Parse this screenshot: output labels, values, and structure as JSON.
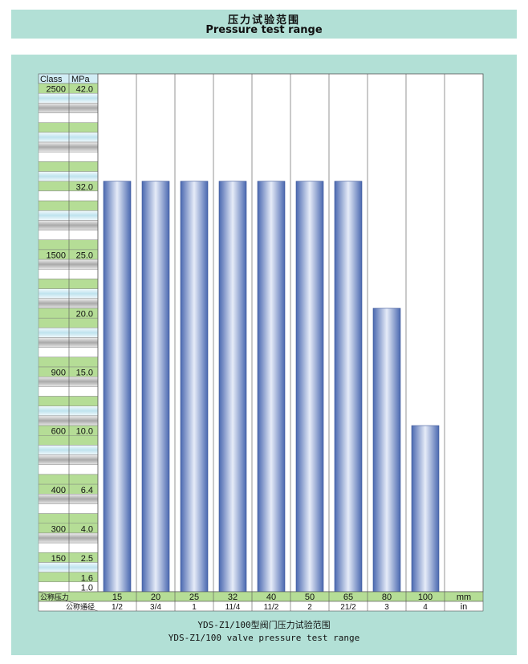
{
  "header": {
    "title_cn": "压力试验范围",
    "title_en": "Pressure test range"
  },
  "chart_data": {
    "type": "bar",
    "title": "压力试验范围",
    "subtitle": "Pressure test range",
    "caption_cn": "YDS-Z1/100型阀门压力试验范围",
    "caption_en": "YDS-Z1/100 valve pressure test range",
    "y_headers": {
      "class": "Class",
      "unit": "MPa"
    },
    "ylim": [
      1.0,
      42.0
    ],
    "y_ticks": [
      {
        "mpa": 42.0,
        "mpa_label": "42.0",
        "class": "2500"
      },
      {
        "mpa": 32.0,
        "mpa_label": "32.0",
        "class": ""
      },
      {
        "mpa": 25.0,
        "mpa_label": "25.0",
        "class": "1500"
      },
      {
        "mpa": 20.0,
        "mpa_label": "20.0",
        "class": ""
      },
      {
        "mpa": 15.0,
        "mpa_label": "15.0",
        "class": "900"
      },
      {
        "mpa": 10.0,
        "mpa_label": "10.0",
        "class": "600"
      },
      {
        "mpa": 6.4,
        "mpa_label": "6.4",
        "class": "400"
      },
      {
        "mpa": 4.0,
        "mpa_label": "4.0",
        "class": "300"
      },
      {
        "mpa": 2.5,
        "mpa_label": "2.5",
        "class": "150"
      },
      {
        "mpa": 1.6,
        "mpa_label": "1.6",
        "class": ""
      },
      {
        "mpa": 1.0,
        "mpa_label": "1.0",
        "class": ""
      }
    ],
    "x_row1_label": "公称压力",
    "x_row2_label": "公称通径",
    "x_unit_mm": "mm",
    "x_unit_in": "in",
    "categories_mm": [
      "15",
      "20",
      "25",
      "32",
      "40",
      "50",
      "65",
      "80",
      "100"
    ],
    "categories_in": [
      "1/2",
      "3/4",
      "1",
      "11/4",
      "11/2",
      "2",
      "21/2",
      "3",
      "4"
    ],
    "values": [
      32.0,
      32.0,
      32.0,
      32.0,
      32.0,
      32.0,
      32.0,
      20.0,
      10.0
    ],
    "grid": true,
    "colors": {
      "background": "#b2e0d6",
      "bar": "#4e6fb5",
      "bar_highlight": "#e6ecf8",
      "row_green": "#b5dd96",
      "row_blue": "#d2edf5",
      "row_grey": "#b8b8b8",
      "row_white": "#ffffff"
    }
  }
}
